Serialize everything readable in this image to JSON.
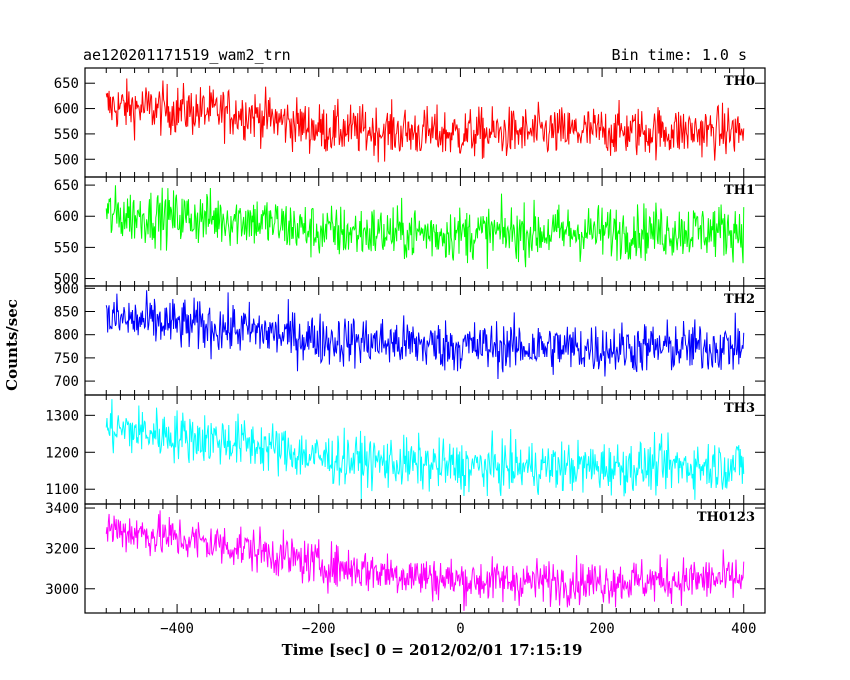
{
  "header": {
    "title": "ae120201171519_wam2_trn",
    "bin_time": "Bin time: 1.0 s"
  },
  "chart_data": {
    "type": "line",
    "title": "ae120201171519_wam2_trn",
    "subtitle": "Bin time: 1.0 s",
    "xlabel": "Time [sec] 0 = 2012/02/01 17:15:19",
    "ylabel": "Counts/sec",
    "xlim": [
      -530,
      430
    ],
    "x_ticks": [
      -400,
      -200,
      0,
      200,
      400
    ],
    "x_range": [
      -500,
      400
    ],
    "grid": false,
    "panels": [
      {
        "name": "TH0",
        "color": "#ff0000",
        "ylim": [
          465,
          680
        ],
        "y_ticks": [
          500,
          550,
          600,
          650
        ],
        "trend": [
          [
            -500,
            605
          ],
          [
            -300,
            590
          ],
          [
            -200,
            560
          ],
          [
            0,
            550
          ],
          [
            200,
            555
          ],
          [
            400,
            555
          ]
        ],
        "noise": 25
      },
      {
        "name": "TH1",
        "color": "#00ff00",
        "ylim": [
          488,
          663
        ],
        "y_ticks": [
          500,
          550,
          600,
          650
        ],
        "trend": [
          [
            -500,
            602
          ],
          [
            -300,
            595
          ],
          [
            -200,
            575
          ],
          [
            0,
            572
          ],
          [
            200,
            575
          ],
          [
            400,
            578
          ]
        ],
        "noise": 22
      },
      {
        "name": "TH2",
        "color": "#0000ff",
        "ylim": [
          670,
          905
        ],
        "y_ticks": [
          700,
          750,
          800,
          850,
          900
        ],
        "trend": [
          [
            -500,
            835
          ],
          [
            -300,
            810
          ],
          [
            -200,
            790
          ],
          [
            0,
            775
          ],
          [
            200,
            770
          ],
          [
            400,
            775
          ]
        ],
        "noise": 28
      },
      {
        "name": "TH3",
        "color": "#00ffff",
        "ylim": [
          1060,
          1355
        ],
        "y_ticks": [
          1100,
          1200,
          1300
        ],
        "trend": [
          [
            -500,
            1265
          ],
          [
            -300,
            1225
          ],
          [
            -200,
            1185
          ],
          [
            0,
            1160
          ],
          [
            200,
            1160
          ],
          [
            400,
            1165
          ]
        ],
        "noise": 35
      },
      {
        "name": "TH0123",
        "color": "#ff00ff",
        "ylim": [
          2880,
          3420
        ],
        "y_ticks": [
          3000,
          3200,
          3400
        ],
        "trend": [
          [
            -500,
            3300
          ],
          [
            -300,
            3200
          ],
          [
            -200,
            3120
          ],
          [
            0,
            3040
          ],
          [
            200,
            3035
          ],
          [
            400,
            3050
          ]
        ],
        "noise": 55
      }
    ]
  }
}
